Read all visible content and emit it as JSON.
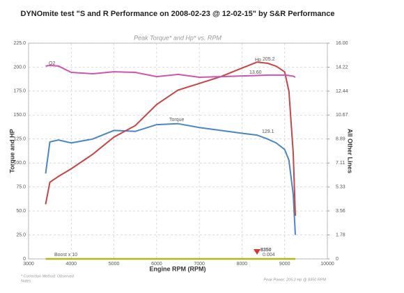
{
  "chart_data": {
    "type": "line",
    "title": "DYNOmite test \"S and R Performance on 2008-02-23 @ 12-02-15\" by S&R Performance",
    "subtitle": "Peak Torque* and Hp* vs. RPM",
    "xlabel": "Engine RPM (RPM)",
    "ylabel": "Torque and HP",
    "y2label": "All Other Lines",
    "x": [
      3400,
      3500,
      3700,
      4000,
      4500,
      5000,
      5500,
      6000,
      6500,
      7000,
      7500,
      8000,
      8350,
      8600,
      8800,
      9000,
      9100,
      9200,
      9250
    ],
    "series": [
      {
        "name": "Torque",
        "color": "#4a86c5",
        "values": [
          89,
          122,
          124,
          121,
          125,
          134,
          133,
          140,
          141,
          137,
          134,
          131,
          129.1,
          125,
          121,
          114,
          103,
          67,
          25
        ]
      },
      {
        "name": "Hp",
        "color": "#c84444",
        "values": [
          57,
          80,
          86,
          94,
          109,
          127,
          139,
          161,
          176,
          183,
          190,
          199,
          205.2,
          204,
          201,
          195,
          175,
          110,
          45
        ]
      },
      {
        "name": "O2",
        "color": "#cc55b0",
        "axis": "y2",
        "values": [
          14.3,
          14.35,
          14.3,
          13.83,
          13.73,
          13.88,
          13.83,
          13.52,
          13.68,
          13.47,
          13.52,
          13.57,
          13.6,
          13.63,
          13.63,
          13.63,
          13.6,
          13.55,
          13.47
        ]
      },
      {
        "name": "Boost x 10",
        "color": "#b5b51a",
        "axis": "y2",
        "values": [
          0,
          0,
          0,
          0,
          0,
          0,
          0,
          0,
          0,
          0,
          0,
          0,
          0,
          0,
          0,
          0,
          0,
          0,
          0
        ]
      }
    ],
    "annotations": [
      "205.2",
      "129.1",
      "13.60",
      "8350",
      "0.004"
    ],
    "xlim": [
      3000,
      10000
    ],
    "xticks": [
      3000,
      4000,
      5000,
      6000,
      7000,
      8000,
      9000,
      10000
    ],
    "ylim": [
      0,
      225
    ],
    "yticks": [
      0,
      {
        "value": 25,
        "label": "25.0"
      },
      {
        "value": 50,
        "label": "50.0"
      },
      {
        "value": 75,
        "label": "75.0"
      },
      {
        "value": 100,
        "label": "100.0"
      },
      {
        "value": 125,
        "label": "125.0"
      },
      {
        "value": 150,
        "label": "150.0"
      },
      {
        "value": 175,
        "label": "175.0"
      },
      {
        "value": 200,
        "label": "200.0"
      },
      {
        "value": 225,
        "label": "225.0"
      }
    ],
    "y2lim": [
      0,
      16
    ],
    "y2ticks": [
      0,
      1.78,
      3.56,
      5.33,
      7.11,
      8.89,
      10.67,
      12.44,
      14.22,
      {
        "value": 16,
        "label": "16.00"
      }
    ],
    "grid": true,
    "footer": [
      "* Correction Method: Observed",
      "Notes",
      "Peak Power: 205.2 Hp @ 8350 RPM"
    ]
  }
}
